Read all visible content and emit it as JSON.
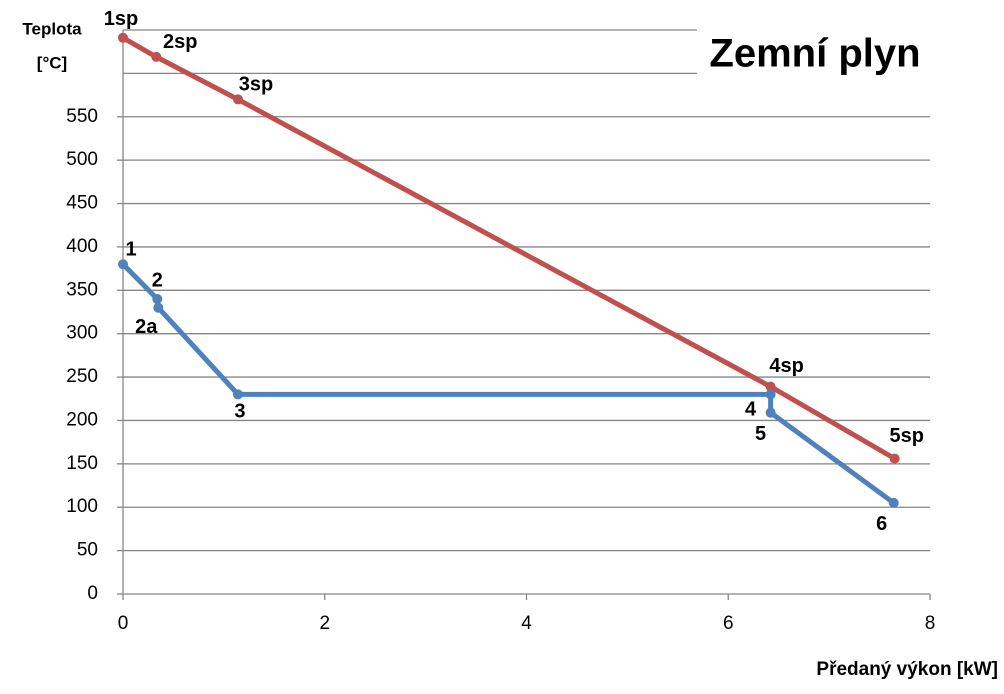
{
  "chart_data": {
    "type": "line",
    "title": "Zemní plyn",
    "xlabel": "Předaný výkon [kW]",
    "ylabel_lines": [
      "Teplota",
      "[°C]"
    ],
    "xlim": [
      0,
      8
    ],
    "xticks": [
      0,
      2,
      4,
      6,
      8
    ],
    "ylim": [
      0,
      650
    ],
    "yticks": [
      0,
      50,
      100,
      150,
      200,
      250,
      300,
      350,
      400,
      450,
      500,
      550
    ],
    "grid_lines": [
      0,
      50,
      100,
      150,
      200,
      250,
      300,
      350,
      400,
      450,
      500,
      550,
      600,
      650
    ],
    "series": [
      {
        "color": "#c0504d",
        "x": [
          0,
          0.33,
          1.14,
          6.42,
          7.65
        ],
        "values": [
          641,
          619,
          570,
          239,
          156
        ],
        "point_labels": [
          "1sp",
          "2sp",
          "3sp",
          "4sp",
          "5sp"
        ]
      },
      {
        "color": "#4f81bd",
        "x": [
          0,
          0.34,
          0.35,
          1.14,
          6.42,
          6.42,
          7.64
        ],
        "values": [
          380,
          340,
          330,
          230,
          230,
          209,
          105
        ],
        "point_labels": [
          "1",
          "2",
          "2a",
          "3",
          "4",
          "5",
          "6"
        ]
      }
    ]
  }
}
